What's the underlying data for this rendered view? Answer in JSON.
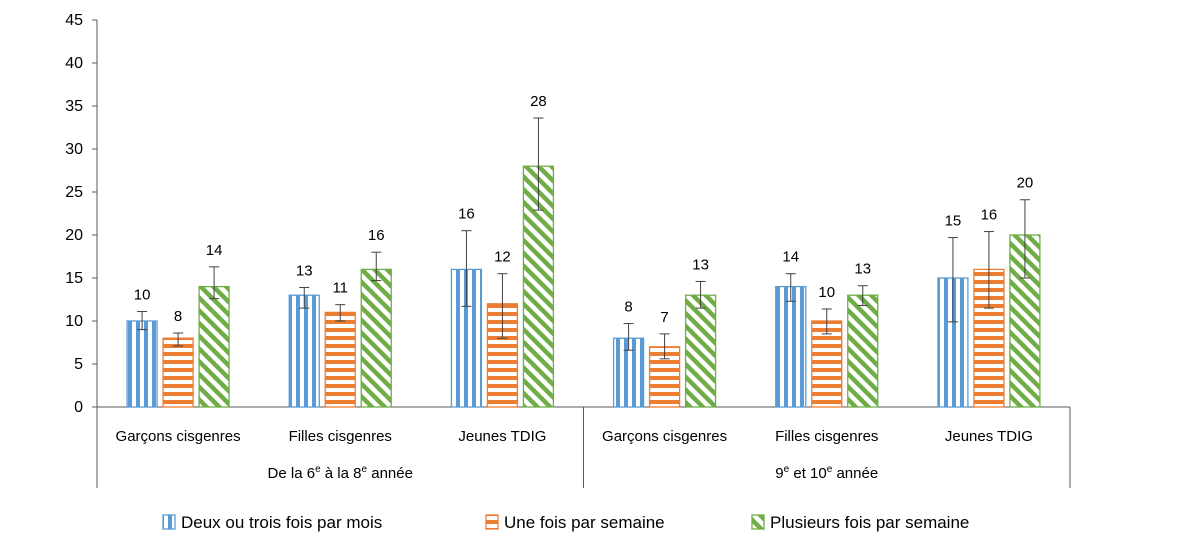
{
  "chart_data": {
    "type": "bar",
    "ylim": [
      0,
      45
    ],
    "yticks": [
      0,
      5,
      10,
      15,
      20,
      25,
      30,
      35,
      40,
      45
    ],
    "grid": false,
    "legend_position": "bottom",
    "groups": [
      {
        "label_main": "De la 6",
        "label_sup1": "e",
        "label_mid": " à la 8",
        "label_sup2": "e",
        "label_end": " année"
      },
      {
        "label_main": "9",
        "label_sup1": "e",
        "label_mid": " et 10",
        "label_sup2": "e",
        "label_end": " année"
      }
    ],
    "categories": [
      "Garçons cisgenres",
      "Filles cisgenres",
      "Jeunes TDIG",
      "Garçons cisgenres",
      "Filles cisgenres",
      "Jeunes TDIG"
    ],
    "series": [
      {
        "name": "Deux ou trois fois par mois",
        "color": "#5B9BD5",
        "pattern": "vertical-stripes",
        "values": [
          10,
          13,
          16,
          8,
          14,
          15
        ],
        "error_low": [
          9,
          11.5,
          11.7,
          6.6,
          12.3,
          9.9
        ],
        "error_high": [
          11.1,
          13.9,
          20.5,
          9.7,
          15.5,
          19.7
        ]
      },
      {
        "name": "Une fois par semaine",
        "color": "#ED7D31",
        "pattern": "horizontal-stripes",
        "values": [
          8,
          11,
          12,
          7,
          10,
          16
        ],
        "error_low": [
          7.1,
          10,
          8,
          5.6,
          8.5,
          11.5
        ],
        "error_high": [
          8.6,
          11.9,
          15.5,
          8.5,
          11.4,
          20.4
        ]
      },
      {
        "name": "Plusieurs fois par semaine",
        "color": "#70AD47",
        "pattern": "diagonal-stripes",
        "values": [
          14,
          16,
          28,
          13,
          13,
          20
        ],
        "error_low": [
          12.6,
          14.7,
          22.9,
          11.5,
          11.8,
          15
        ],
        "error_high": [
          16.3,
          18,
          33.6,
          14.6,
          14.1,
          24.1
        ]
      }
    ]
  }
}
